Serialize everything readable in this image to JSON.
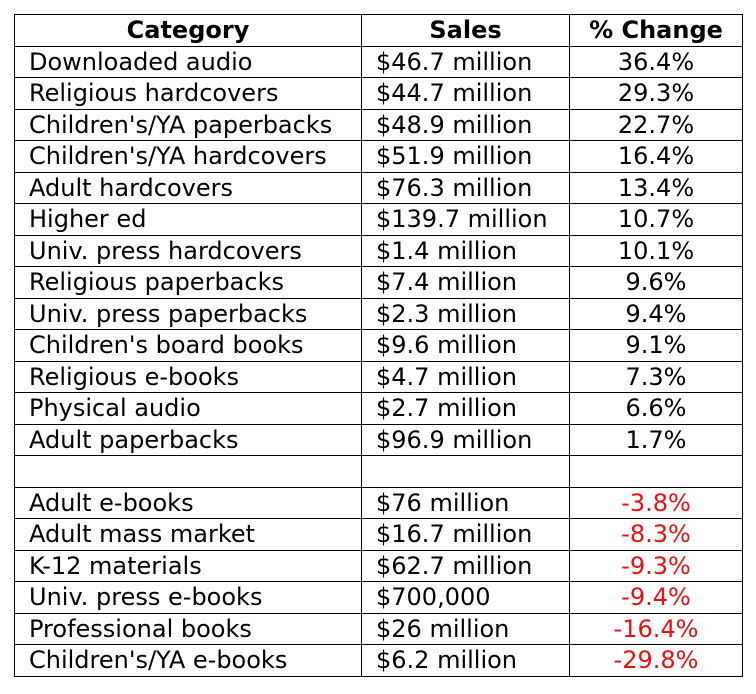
{
  "table": {
    "headers": [
      "Category",
      "Sales",
      "% Change"
    ],
    "rows": [
      [
        "Downloaded audio",
        "$46.7 million",
        "36.4%"
      ],
      [
        "Religious hardcovers",
        "$44.7 million",
        "29.3%"
      ],
      [
        "Children's/YA paperbacks",
        "$48.9 million",
        "22.7%"
      ],
      [
        "Children's/YA hardcovers",
        "$51.9 million",
        "16.4%"
      ],
      [
        "Adult hardcovers",
        "$76.3 million",
        "13.4%"
      ],
      [
        "Higher ed",
        "$139.7 million",
        "10.7%"
      ],
      [
        "Univ. press hardcovers",
        "$1.4 million",
        "10.1%"
      ],
      [
        "Religious paperbacks",
        "$7.4 million",
        "9.6%"
      ],
      [
        "Univ. press paperbacks",
        "$2.3 million",
        "9.4%"
      ],
      [
        "Children's board books",
        "$9.6 million",
        "9.1%"
      ],
      [
        "Religious e-books",
        "$4.7 million",
        "7.3%"
      ],
      [
        "Physical audio",
        "$2.7 million",
        "6.6%"
      ],
      [
        "Adult paperbacks",
        "$96.9 million",
        "1.7%"
      ],
      [
        "",
        "",
        ""
      ],
      [
        "Adult e-books",
        "$76 million",
        "-3.8%"
      ],
      [
        "Adult mass market",
        "$16.7 million",
        "-8.3%"
      ],
      [
        "K-12 materials",
        "$62.7 million",
        "-9.3%"
      ],
      [
        "Univ. press e-books",
        "$700,000",
        "-9.4%"
      ],
      [
        "Professional books",
        "$26 million",
        "-16.4%"
      ],
      [
        "Children's/YA e-books",
        "$6.2 million",
        "-29.8%"
      ]
    ]
  },
  "colors": {
    "negative_change": "#e81010",
    "border": "#000000"
  }
}
